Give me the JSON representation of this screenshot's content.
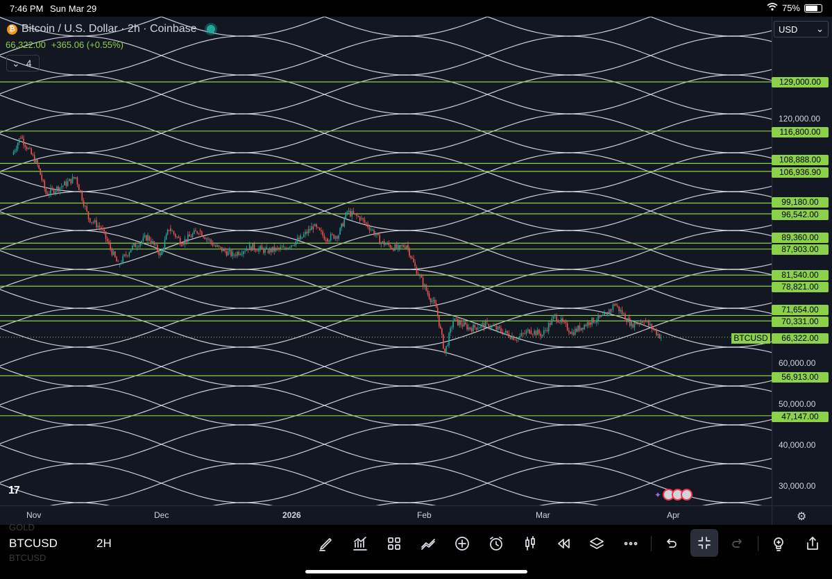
{
  "status_bar": {
    "time": "7:46 PM",
    "date": "Sun Mar 29",
    "battery": "75%"
  },
  "symbol": {
    "title": "Bitcoin / U.S. Dollar · 2h · Coinbase",
    "last_price": "66,322.00",
    "change": "+365.06 (+0.55%)",
    "indicator_count": "4",
    "currency": "USD"
  },
  "colors": {
    "background": "#131722",
    "level_line": "#8cd14a",
    "arc_line": "#e0e3eb",
    "up": "#26a69a",
    "down": "#ef5350"
  },
  "chart_data": {
    "type": "candlestick",
    "title": "Bitcoin / U.S. Dollar · 2h · Coinbase",
    "x_ticks": [
      "Nov",
      "Dec",
      "2026",
      "Feb",
      "Mar",
      "Apr"
    ],
    "y_ticks": [
      "120,000.00",
      "60,000.00",
      "50,000.00",
      "40,000.00",
      "30,000.00"
    ],
    "horizontal_levels": [
      "129,000.00",
      "116,800.00",
      "108,888.00",
      "106,936.90",
      "99,180.00",
      "96,542.00",
      "89,360.00",
      "87,903.00",
      "81,540.00",
      "78,821.00",
      "71,654.00",
      "70,331.00",
      "56,913.00",
      "47,147.00"
    ],
    "current_price": {
      "label": "BTCUSD",
      "value": "66,322.00"
    },
    "price_path": [
      {
        "x": "Oct 27",
        "y": 111000
      },
      {
        "x": "Oct 29",
        "y": 115500
      },
      {
        "x": "Nov 2",
        "y": 108500
      },
      {
        "x": "Nov 4",
        "y": 101500
      },
      {
        "x": "Nov 8",
        "y": 103500
      },
      {
        "x": "Nov 11",
        "y": 105500
      },
      {
        "x": "Nov 14",
        "y": 95500
      },
      {
        "x": "Nov 17",
        "y": 93000
      },
      {
        "x": "Nov 21",
        "y": 84000
      },
      {
        "x": "Nov 24",
        "y": 88000
      },
      {
        "x": "Nov 28",
        "y": 91000
      },
      {
        "x": "Dec 1",
        "y": 86500
      },
      {
        "x": "Dec 3",
        "y": 93000
      },
      {
        "x": "Dec 6",
        "y": 89500
      },
      {
        "x": "Dec 10",
        "y": 92500
      },
      {
        "x": "Dec 14",
        "y": 88500
      },
      {
        "x": "Dec 18",
        "y": 86500
      },
      {
        "x": "Dec 22",
        "y": 88500
      },
      {
        "x": "Dec 26",
        "y": 87500
      },
      {
        "x": "Dec 30",
        "y": 88000
      },
      {
        "x": "Jan 3",
        "y": 90500
      },
      {
        "x": "Jan 6",
        "y": 93500
      },
      {
        "x": "Jan 9",
        "y": 90500
      },
      {
        "x": "Jan 12",
        "y": 91500
      },
      {
        "x": "Jan 14",
        "y": 97000
      },
      {
        "x": "Jan 17",
        "y": 95500
      },
      {
        "x": "Jan 20",
        "y": 92500
      },
      {
        "x": "Jan 22",
        "y": 89500
      },
      {
        "x": "Jan 26",
        "y": 88000
      },
      {
        "x": "Jan 28",
        "y": 89000
      },
      {
        "x": "Jan 30",
        "y": 83500
      },
      {
        "x": "Feb 2",
        "y": 77000
      },
      {
        "x": "Feb 4",
        "y": 73500
      },
      {
        "x": "Feb 6",
        "y": 62500
      },
      {
        "x": "Feb 8",
        "y": 70500
      },
      {
        "x": "Feb 12",
        "y": 68500
      },
      {
        "x": "Feb 16",
        "y": 69500
      },
      {
        "x": "Feb 20",
        "y": 67500
      },
      {
        "x": "Feb 23",
        "y": 66000
      },
      {
        "x": "Feb 26",
        "y": 68000
      },
      {
        "x": "Mar 1",
        "y": 67000
      },
      {
        "x": "Mar 4",
        "y": 71500
      },
      {
        "x": "Mar 8",
        "y": 67500
      },
      {
        "x": "Mar 12",
        "y": 70000
      },
      {
        "x": "Mar 16",
        "y": 71500
      },
      {
        "x": "Mar 18",
        "y": 74500
      },
      {
        "x": "Mar 22",
        "y": 69500
      },
      {
        "x": "Mar 25",
        "y": 70500
      },
      {
        "x": "Mar 29",
        "y": 66322
      }
    ]
  },
  "time_axis": {
    "nov": "Nov",
    "dec": "Dec",
    "y2026": "2026",
    "feb": "Feb",
    "mar": "Mar",
    "apr": "Apr"
  },
  "price_axis": {
    "levels": [
      "129,000.00",
      "116,800.00",
      "108,888.00",
      "106,936.90",
      "99,180.00",
      "96,542.00",
      "89,360.00",
      "87,903.00",
      "81,540.00",
      "78,821.00",
      "71,654.00",
      "70,331.00",
      "56,913.00",
      "47,147.00"
    ],
    "ticks": [
      "120,000.00",
      "60,000.00",
      "50,000.00",
      "40,000.00",
      "30,000.00"
    ],
    "current_label": "BTCUSD",
    "current_value": "66,322.00"
  },
  "toolbar": {
    "symbol": "BTCUSD",
    "interval": "2H",
    "ghost_above": "GOLD",
    "ghost_below": "BTCUSD",
    "tools": [
      "pencil-icon",
      "indicators-icon",
      "layout-grid-icon",
      "drawing-tools-icon",
      "add-icon",
      "alert-clock-icon",
      "candles-icon",
      "replay-icon",
      "layers-icon",
      "more-icon",
      "undo-icon",
      "collapse-icon",
      "redo-icon",
      "bulb-icon",
      "share-icon"
    ]
  }
}
